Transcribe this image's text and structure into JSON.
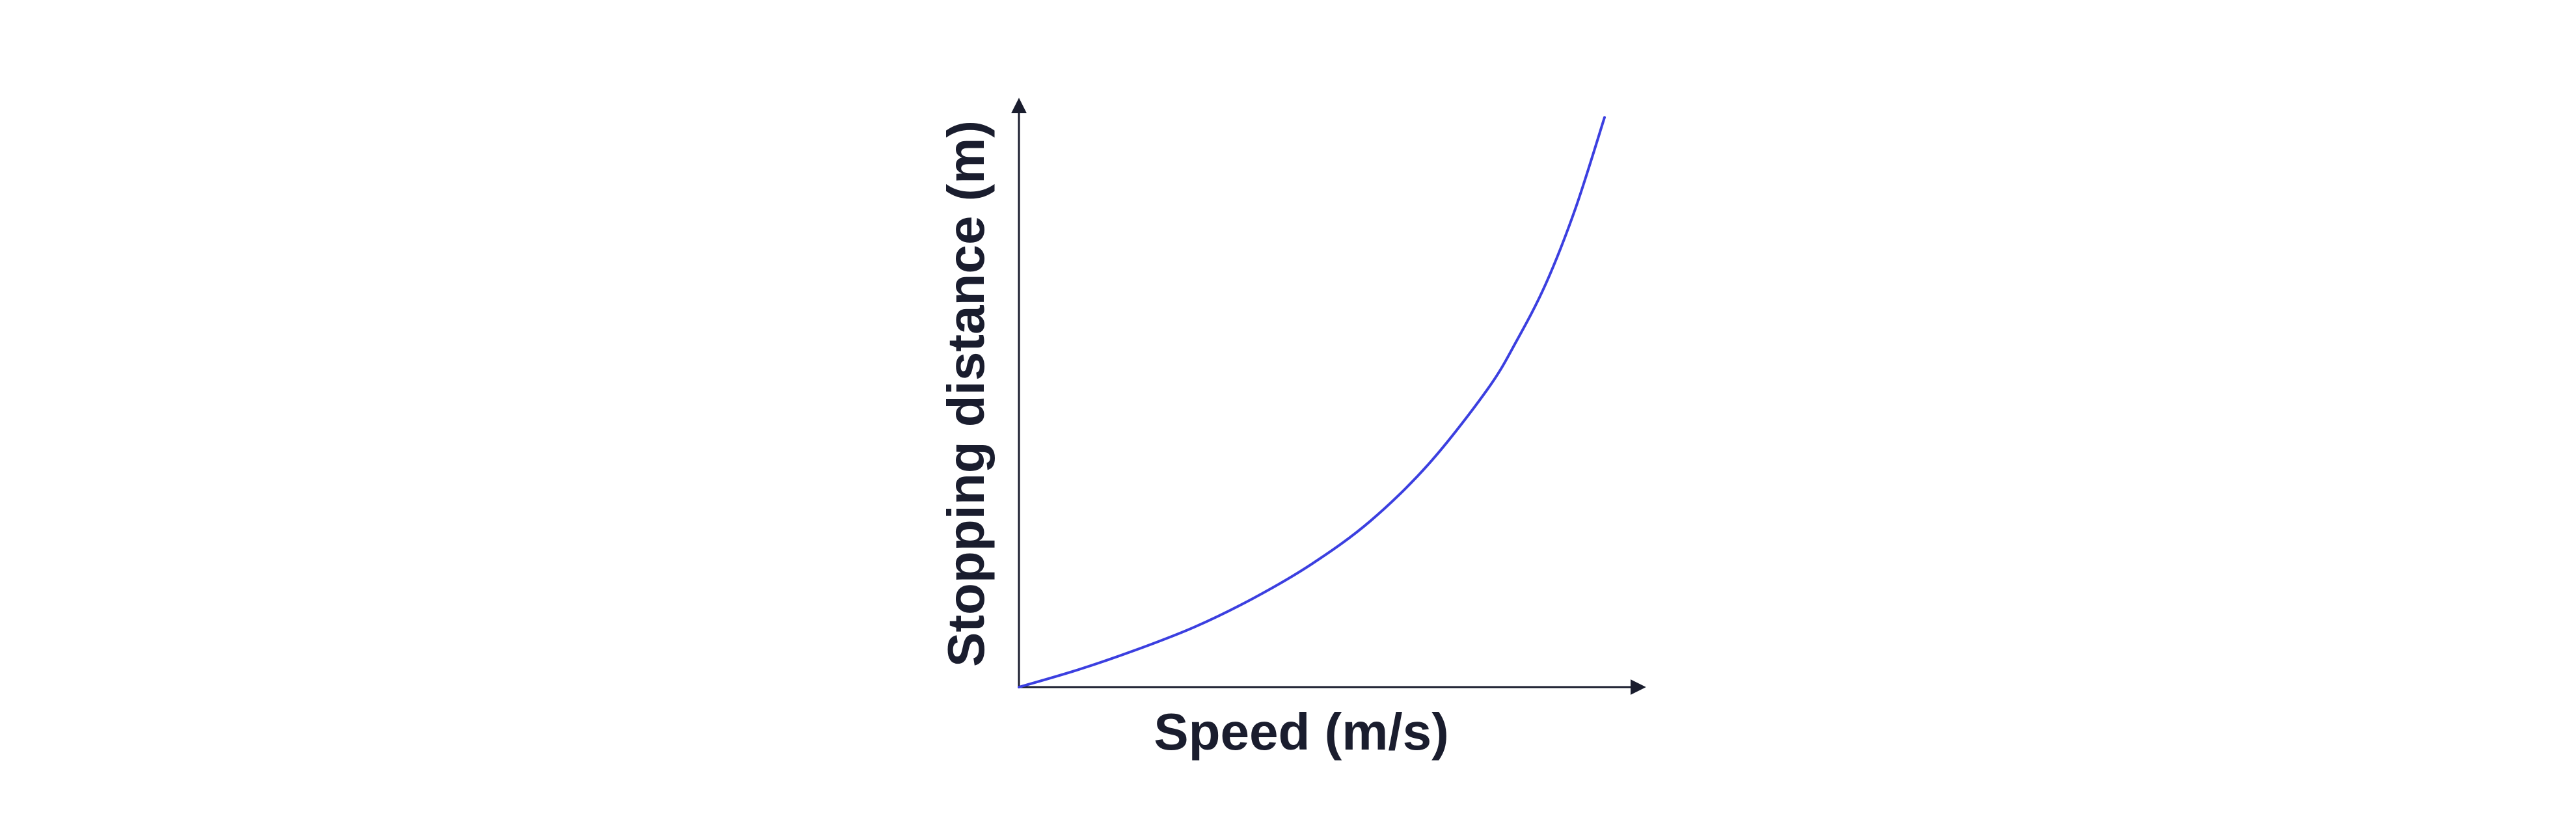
{
  "chart_data": {
    "type": "line",
    "title": "",
    "xlabel": "Speed (m/s)",
    "ylabel": "Stopping distance (m)",
    "x_ticks": [],
    "y_ticks": [],
    "grid": false,
    "legend": "none",
    "axis_arrows": true,
    "series": [
      {
        "color": "#3b3fe0",
        "shape": "monotonically increasing curve, gradual at low speed and rising steeply at high speed",
        "x": [
          0,
          0.1,
          0.2,
          0.3,
          0.4,
          0.5,
          0.6,
          0.7,
          0.8,
          0.85,
          0.9,
          0.95,
          1.0
        ],
        "y": [
          0,
          0.03,
          0.065,
          0.105,
          0.155,
          0.215,
          0.29,
          0.39,
          0.52,
          0.605,
          0.705,
          0.835,
          0.995
        ]
      }
    ],
    "xlim": [
      0,
      1.06
    ],
    "ylim": [
      0,
      1.0
    ],
    "colors": {
      "axis": "#1a1d2e",
      "text": "#1a1d2e",
      "curve": "#3b3fe0"
    }
  }
}
